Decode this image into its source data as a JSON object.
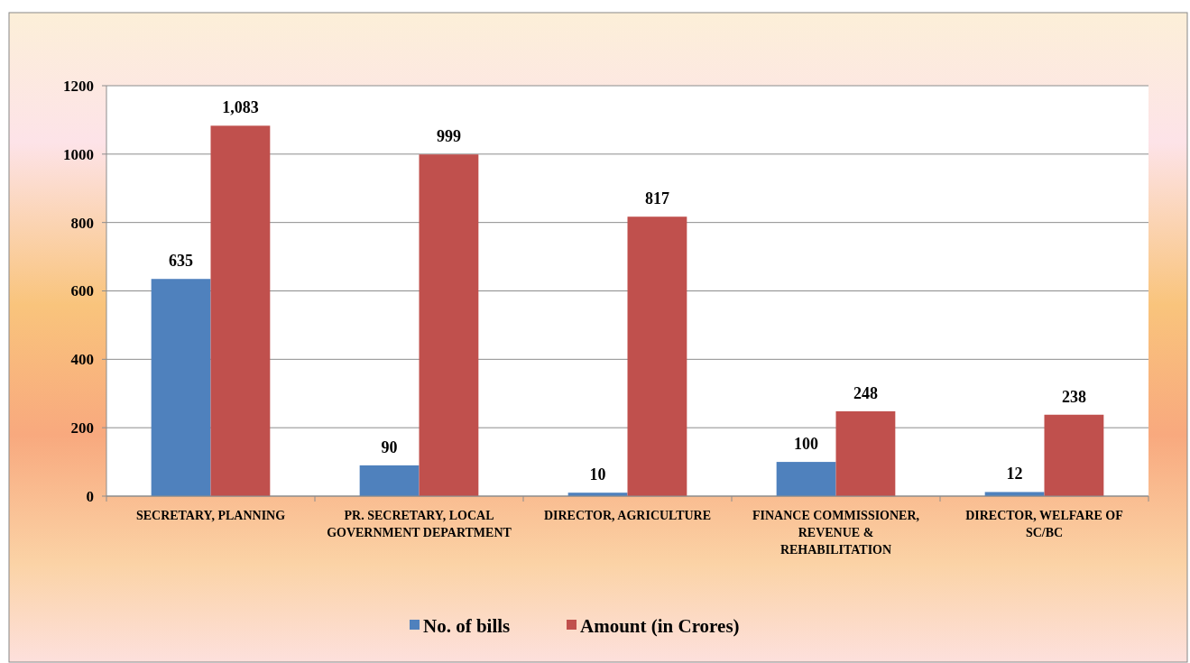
{
  "chart_data": {
    "type": "bar",
    "categories": [
      "SECRETARY, PLANNING",
      "PR. SECRETARY, LOCAL GOVERNMENT DEPARTMENT",
      "DIRECTOR, AGRICULTURE",
      "FINANCE COMMISSIONER, REVENUE & REHABILITATION",
      "DIRECTOR, WELFARE OF SC/BC"
    ],
    "series": [
      {
        "name": "No. of bills",
        "color": "#4f81bd",
        "values": [
          635,
          90,
          10,
          100,
          12
        ],
        "value_labels": [
          "635",
          "90",
          "10",
          "100",
          "12"
        ]
      },
      {
        "name": "Amount (in Crores)",
        "color": "#c0504d",
        "values": [
          1083,
          999,
          817,
          248,
          238
        ],
        "value_labels": [
          "1,083",
          "999",
          "817",
          "248",
          "238"
        ]
      }
    ],
    "ylim": [
      0,
      1200
    ],
    "yticks": [
      0,
      200,
      400,
      600,
      800,
      1000,
      1200
    ],
    "grid": "y",
    "legend": "bottom"
  }
}
